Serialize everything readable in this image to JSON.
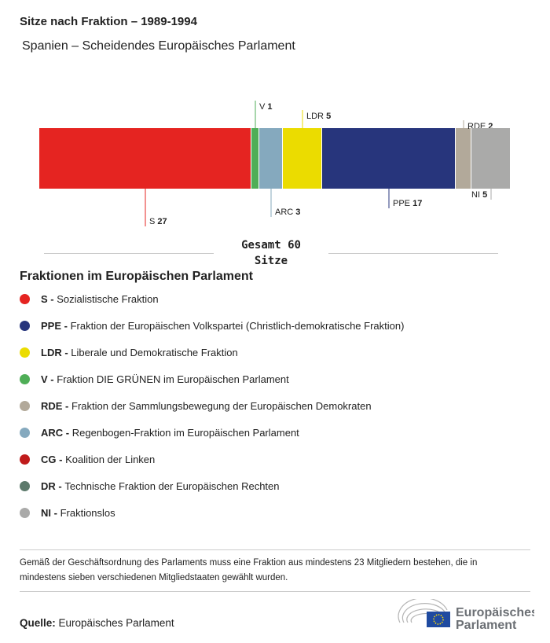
{
  "title": "Sitze nach Fraktion – 1989-1994",
  "subtitle": "Spanien – Scheidendes Europäisches Parlament",
  "chart_data": {
    "type": "bar",
    "orientation": "horizontal-stacked",
    "series": [
      {
        "name": "S",
        "value": 27,
        "color": "#e52421",
        "label_pos": "below"
      },
      {
        "name": "V",
        "value": 1,
        "color": "#4fae57",
        "label_pos": "above"
      },
      {
        "name": "ARC",
        "value": 3,
        "color": "#85a9be",
        "label_pos": "below"
      },
      {
        "name": "LDR",
        "value": 5,
        "color": "#ebdc00",
        "label_pos": "above"
      },
      {
        "name": "PPE",
        "value": 17,
        "color": "#27357c",
        "label_pos": "below"
      },
      {
        "name": "RDE",
        "value": 2,
        "color": "#b2a99a",
        "label_pos": "above"
      },
      {
        "name": "NI",
        "value": 5,
        "color": "#aaaaa9",
        "label_pos": "below"
      }
    ],
    "total": 60
  },
  "total_line1": "Gesamt 60",
  "total_line2": "Sitze",
  "legend_title": "Fraktionen im Europäischen Parlament",
  "legend": [
    {
      "abbr": "S -",
      "name": "Sozialistische Fraktion",
      "color": "#e52421"
    },
    {
      "abbr": "PPE -",
      "name": "Fraktion der Europäischen Volkspartei (Christlich-demokratische Fraktion)",
      "color": "#27357c"
    },
    {
      "abbr": "LDR -",
      "name": "Liberale und Demokratische Fraktion",
      "color": "#ebdc00"
    },
    {
      "abbr": "V -",
      "name": "Fraktion DIE GRÜNEN im Europäischen Parlament",
      "color": "#4fae57"
    },
    {
      "abbr": "RDE -",
      "name": "Fraktion der Sammlungsbewegung der Europäischen Demokraten",
      "color": "#b2a99a"
    },
    {
      "abbr": "ARC -",
      "name": "Regenbogen-Fraktion im Europäischen Parlament",
      "color": "#85a9be"
    },
    {
      "abbr": "CG -",
      "name": "Koalition der Linken",
      "color": "#c01b1b"
    },
    {
      "abbr": "DR -",
      "name": "Technische Fraktion der Europäischen Rechten",
      "color": "#5d7a6c"
    },
    {
      "abbr": "NI -",
      "name": "Fraktionslos",
      "color": "#aaaaa9"
    }
  ],
  "note": "Gemäß der Geschäftsordnung des Parlaments muss eine Fraktion aus mindestens 23 Mitgliedern bestehen, die in mindestens sieben verschiedenen Mitgliedstaaten gewählt wurden.",
  "source_label": "Quelle:",
  "source": "Europäisches Parlament",
  "logo_text": "Europäisches Parlament"
}
